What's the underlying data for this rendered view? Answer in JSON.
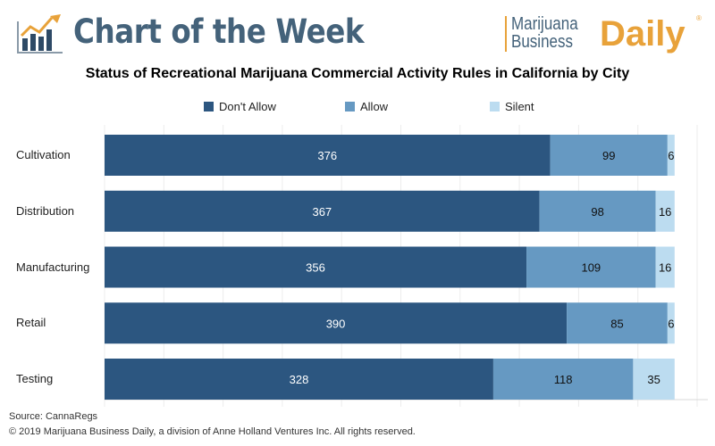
{
  "header": {
    "title": "Chart of the Week",
    "logo_line1": "Marijuana",
    "logo_line2": "Business",
    "logo_word": "Daily",
    "logo_mark": "®"
  },
  "colors": {
    "dont_allow": "#2c5680",
    "allow": "#6699c2",
    "silent": "#bcdcf0",
    "header_text": "#44627a",
    "logo_accent": "#e8a23a"
  },
  "chart_data": {
    "type": "bar",
    "orientation": "horizontal",
    "stacked": true,
    "title": "Status of Recreational Marijuana Commercial Activity Rules in California by City",
    "categories": [
      "Cultivation",
      "Distribution",
      "Manufacturing",
      "Retail",
      "Testing"
    ],
    "series": [
      {
        "name": "Don't Allow",
        "values": [
          376,
          367,
          356,
          390,
          328
        ]
      },
      {
        "name": "Allow",
        "values": [
          99,
          98,
          109,
          85,
          118
        ]
      },
      {
        "name": "Silent",
        "values": [
          6,
          16,
          16,
          6,
          35
        ]
      }
    ],
    "xlim": [
      0,
      500
    ],
    "xtick_step": 50,
    "grid": true,
    "legend": "top",
    "data_labels": true
  },
  "footer": {
    "source": "Source: CannaRegs",
    "copyright": "© 2019 Marijuana Business Daily, a division of Anne Holland Ventures Inc. All rights reserved."
  }
}
